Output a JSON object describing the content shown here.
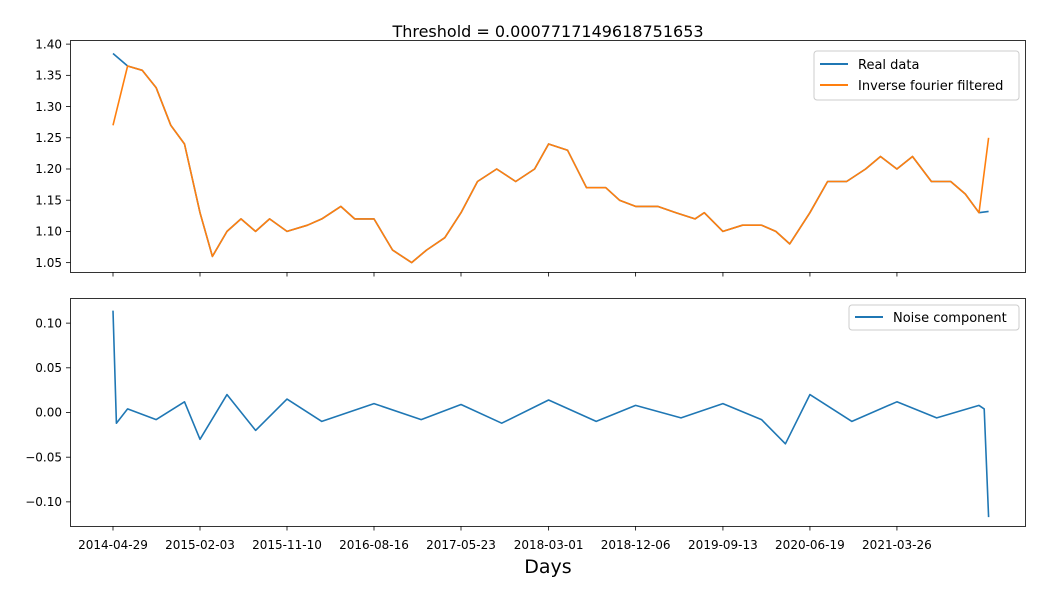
{
  "chart_data": [
    {
      "type": "line",
      "title": "Threshold = 0.0007717149618751653",
      "xlabel": "",
      "ylabel": "",
      "ylim": [
        1.035,
        1.405
      ],
      "yticks": [
        "1.05",
        "1.10",
        "1.15",
        "1.20",
        "1.25",
        "1.30",
        "1.35",
        "1.40"
      ],
      "xtick_labels": [],
      "x": [
        "2014-04-29",
        "2014-06-15",
        "2014-08-01",
        "2014-09-15",
        "2014-11-01",
        "2014-12-15",
        "2015-02-03",
        "2015-03-15",
        "2015-05-01",
        "2015-06-15",
        "2015-08-01",
        "2015-09-15",
        "2015-11-10",
        "2016-01-15",
        "2016-03-01",
        "2016-05-01",
        "2016-06-15",
        "2016-08-16",
        "2016-10-15",
        "2016-12-15",
        "2017-02-01",
        "2017-04-01",
        "2017-05-23",
        "2017-07-15",
        "2017-09-15",
        "2017-11-15",
        "2018-01-15",
        "2018-03-01",
        "2018-05-01",
        "2018-07-01",
        "2018-09-01",
        "2018-10-15",
        "2018-12-06",
        "2019-02-15",
        "2019-04-15",
        "2019-06-15",
        "2019-07-15",
        "2019-09-13",
        "2019-11-15",
        "2020-01-15",
        "2020-03-01",
        "2020-04-15",
        "2020-06-19",
        "2020-08-15",
        "2020-10-15",
        "2020-12-15",
        "2021-02-01",
        "2021-03-26",
        "2021-05-15",
        "2021-07-15",
        "2021-09-15",
        "2021-11-01",
        "2021-12-15",
        "2022-01-15"
      ],
      "series": [
        {
          "name": "Real data",
          "color": "#1f77b4",
          "values": [
            1.385,
            1.365,
            1.358,
            1.33,
            1.27,
            1.24,
            1.13,
            1.06,
            1.1,
            1.12,
            1.1,
            1.12,
            1.1,
            1.11,
            1.12,
            1.14,
            1.12,
            1.12,
            1.07,
            1.05,
            1.07,
            1.09,
            1.13,
            1.18,
            1.2,
            1.18,
            1.2,
            1.24,
            1.23,
            1.17,
            1.17,
            1.15,
            1.14,
            1.14,
            1.13,
            1.12,
            1.13,
            1.1,
            1.11,
            1.11,
            1.1,
            1.08,
            1.13,
            1.18,
            1.18,
            1.2,
            1.22,
            1.2,
            1.22,
            1.18,
            1.18,
            1.16,
            1.13,
            1.132
          ]
        },
        {
          "name": "Inverse fourier filtered",
          "color": "#ff7f0e",
          "values": [
            1.27,
            1.365,
            1.358,
            1.33,
            1.27,
            1.24,
            1.13,
            1.06,
            1.1,
            1.12,
            1.1,
            1.12,
            1.1,
            1.11,
            1.12,
            1.14,
            1.12,
            1.12,
            1.07,
            1.05,
            1.07,
            1.09,
            1.13,
            1.18,
            1.2,
            1.18,
            1.2,
            1.24,
            1.23,
            1.17,
            1.17,
            1.15,
            1.14,
            1.14,
            1.13,
            1.12,
            1.13,
            1.1,
            1.11,
            1.11,
            1.1,
            1.08,
            1.13,
            1.18,
            1.18,
            1.2,
            1.22,
            1.2,
            1.22,
            1.18,
            1.18,
            1.16,
            1.13,
            1.25
          ]
        }
      ],
      "legend": "top-right"
    },
    {
      "type": "line",
      "title": "",
      "xlabel": "Days",
      "ylabel": "",
      "ylim": [
        -0.127,
        0.127
      ],
      "yticks": [
        "−0.10",
        "−0.05",
        "0.00",
        "0.05",
        "0.10"
      ],
      "xtick_labels": [
        "2014-04-29",
        "2015-02-03",
        "2015-11-10",
        "2016-08-16",
        "2017-05-23",
        "2018-03-01",
        "2018-12-06",
        "2019-09-13",
        "2020-06-19",
        "2021-03-26"
      ],
      "x": [
        "2014-04-29",
        "2014-05-10",
        "2014-06-15",
        "2014-09-15",
        "2014-12-15",
        "2015-02-03",
        "2015-05-01",
        "2015-08-01",
        "2015-11-10",
        "2016-03-01",
        "2016-08-16",
        "2017-01-15",
        "2017-05-23",
        "2017-10-01",
        "2018-03-01",
        "2018-08-01",
        "2018-12-06",
        "2019-05-01",
        "2019-09-13",
        "2020-01-15",
        "2020-04-01",
        "2020-06-19",
        "2020-11-01",
        "2021-03-26",
        "2021-08-01",
        "2021-12-15",
        "2022-01-01",
        "2022-01-15"
      ],
      "series": [
        {
          "name": "Noise component",
          "color": "#1f77b4",
          "values": [
            0.114,
            -0.012,
            0.004,
            -0.008,
            0.012,
            -0.03,
            0.02,
            -0.02,
            0.015,
            -0.01,
            0.01,
            -0.008,
            0.009,
            -0.012,
            0.014,
            -0.01,
            0.008,
            -0.006,
            0.01,
            -0.008,
            -0.035,
            0.02,
            -0.01,
            0.012,
            -0.006,
            0.008,
            0.004,
            -0.117
          ]
        }
      ],
      "legend": "top-right"
    }
  ]
}
